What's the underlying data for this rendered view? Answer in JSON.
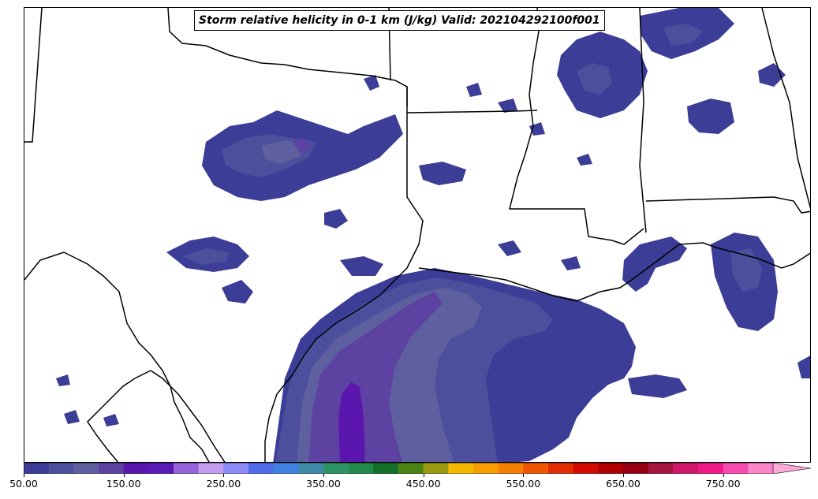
{
  "title": "Storm relative helicity in 0-1 km (J/kg) Valid: 202104292100f001",
  "colorbar": {
    "colors": [
      "#3b3d96",
      "#4c4f9c",
      "#5e5f9f",
      "#5e42a2",
      "#5b16ae",
      "#5b19b8",
      "#9663d8",
      "#c29df0",
      "#8d8cf6",
      "#4f6de8",
      "#3f81e0",
      "#3d8aa8",
      "#2e9468",
      "#218a4a",
      "#127028",
      "#4a8513",
      "#999a10",
      "#f4b800",
      "#f99e00",
      "#f57f00",
      "#f05600",
      "#e22d00",
      "#d20a00",
      "#b00000",
      "#970010",
      "#a5153d",
      "#d0166b",
      "#ef1a88",
      "#f64ab0",
      "#fb85c8"
    ],
    "extend_color": "#fdaad8",
    "tick_labels": [
      "50.00",
      "150.00",
      "250.00",
      "350.00",
      "450.00",
      "550.00",
      "650.00",
      "750.00"
    ],
    "min": 50,
    "max": 800
  },
  "map": {
    "land_color": "#ffffff",
    "border_color": "#000000",
    "shading_colors": {
      "level1": "#3b3d96",
      "level2": "#4c4f9c",
      "level3": "#5e5f9f",
      "level4": "#5e42a2",
      "level5": "#5b16ae"
    }
  }
}
